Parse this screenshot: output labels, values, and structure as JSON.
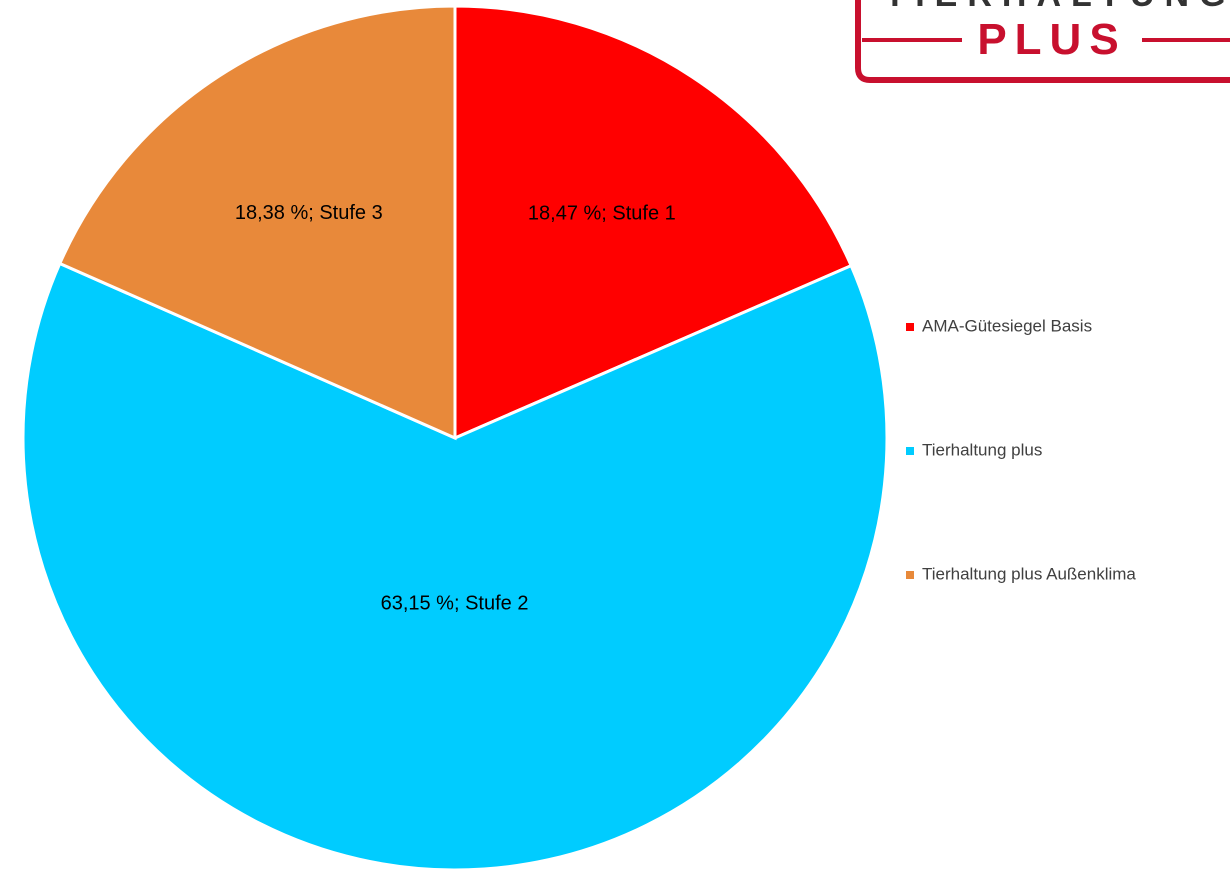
{
  "logo": {
    "top": "TIERHALTUNG",
    "bottom": "PLUS"
  },
  "chart_data": {
    "type": "pie",
    "categories": [
      "AMA-Gütesiegel Basis",
      "Tierhaltung plus",
      "Tierhaltung plus Außenklima"
    ],
    "values": [
      18.47,
      63.15,
      18.38
    ],
    "value_labels": [
      "18,47 %; Stufe 1",
      "63,15 %; Stufe 2",
      "18,38 %; Stufe 3"
    ],
    "colors": [
      "#ff0000",
      "#00ccff",
      "#e8893a"
    ],
    "legend": "right"
  }
}
